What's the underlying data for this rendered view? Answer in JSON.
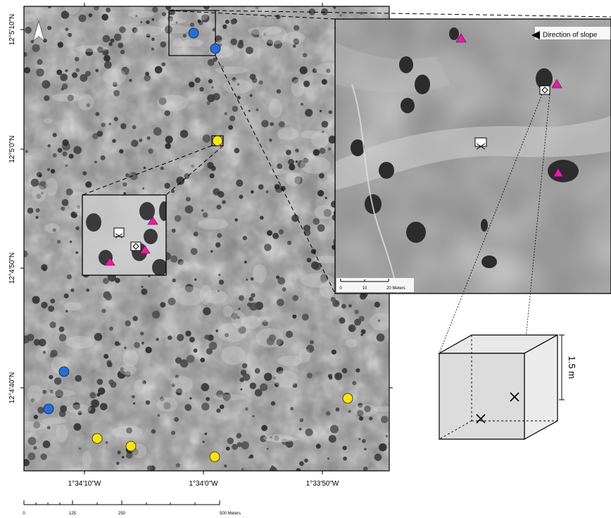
{
  "map": {
    "lat_labels": [
      "12°5'10\"N",
      "12°5'0\"N",
      "12°4'50\"N",
      "12°4'40\"N"
    ],
    "lon_labels": [
      "1°34'10\"W",
      "1°34'0\"W",
      "1°33'50\"W"
    ],
    "north_arrow_icon": "north-arrow-icon"
  },
  "main_scalebar": {
    "ticks": [
      "0",
      "125",
      "250",
      "500 Meters"
    ]
  },
  "inset_large": {
    "slope_label": "Direction of slope",
    "scale_ticks": [
      "0",
      "10",
      "20 Meters"
    ]
  },
  "cube": {
    "height_label": "1.5 m"
  },
  "colors": {
    "blue_marker": "#1f6fe0",
    "yellow_marker": "#ffe600",
    "magenta_marker": "#ff10b0"
  }
}
